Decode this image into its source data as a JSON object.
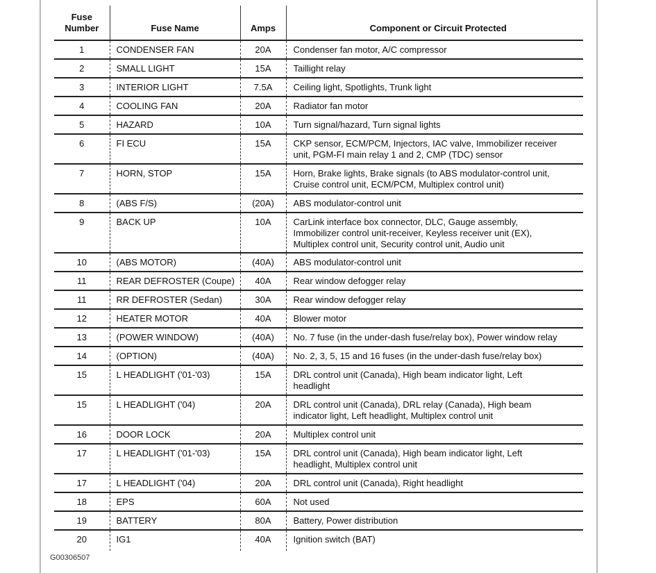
{
  "headers": [
    "Fuse Number",
    "Fuse Name",
    "Amps",
    "Component or Circuit Protected"
  ],
  "header_lines": {
    "number": [
      "Fuse",
      "Number"
    ]
  },
  "rows": [
    {
      "number": "1",
      "name": "CONDENSER FAN",
      "amps": "20A",
      "lines": [
        "Condenser fan motor, A/C compressor"
      ]
    },
    {
      "number": "2",
      "name": "SMALL LIGHT",
      "amps": "15A",
      "lines": [
        "Taillight relay"
      ]
    },
    {
      "number": "3",
      "name": "INTERIOR LIGHT",
      "amps": "7.5A",
      "lines": [
        "Ceiling light, Spotlights, Trunk light"
      ]
    },
    {
      "number": "4",
      "name": "COOLING FAN",
      "amps": "20A",
      "lines": [
        "Radiator fan motor"
      ]
    },
    {
      "number": "5",
      "name": "HAZARD",
      "amps": "10A",
      "lines": [
        "Turn signal/hazard, Turn signal lights"
      ]
    },
    {
      "number": "6",
      "name": "FI ECU",
      "amps": "15A",
      "lines": [
        "CKP sensor, ECM/PCM, Injectors, IAC valve, Immobilizer receiver",
        "unit, PGM-FI main relay 1 and 2, CMP (TDC) sensor"
      ]
    },
    {
      "number": "7",
      "name": "HORN, STOP",
      "amps": "15A",
      "lines": [
        "Horn, Brake lights, Brake signals (to ABS modulator-control unit,",
        "Cruise control unit, ECM/PCM, Multiplex control unit)"
      ]
    },
    {
      "number": "8",
      "name": "(ABS F/S)",
      "amps": "(20A)",
      "lines": [
        "ABS modulator-control unit"
      ]
    },
    {
      "number": "9",
      "name": "BACK UP",
      "amps": "10A",
      "lines": [
        "CarLink interface box connector, DLC, Gauge assembly,",
        "Immobilizer control unit-receiver, Keyless receiver unit (EX),",
        "Multiplex control unit, Security control unit, Audio unit"
      ]
    },
    {
      "number": "10",
      "name": "(ABS MOTOR)",
      "amps": "(40A)",
      "lines": [
        "ABS modulator-control unit"
      ]
    },
    {
      "number": "11",
      "name": "REAR DEFROSTER (Coupe)",
      "amps": "40A",
      "lines": [
        "Rear window defogger relay"
      ]
    },
    {
      "number": "11",
      "name": "RR DEFROSTER (Sedan)",
      "amps": "30A",
      "lines": [
        "Rear window defogger relay"
      ]
    },
    {
      "number": "12",
      "name": "HEATER MOTOR",
      "amps": "40A",
      "lines": [
        "Blower motor"
      ]
    },
    {
      "number": "13",
      "name": "(POWER WINDOW)",
      "amps": "(40A)",
      "lines": [
        "No. 7 fuse (in the under-dash fuse/relay box), Power window relay"
      ]
    },
    {
      "number": "14",
      "name": "(OPTION)",
      "amps": "(40A)",
      "lines": [
        "No. 2, 3, 5, 15 and 16 fuses (in the under-dash fuse/relay box)"
      ]
    },
    {
      "number": "15",
      "name": "L HEADLIGHT ('01-'03)",
      "amps": "15A",
      "lines": [
        "DRL control unit (Canada), High beam indicator light, Left",
        "headlight"
      ]
    },
    {
      "number": "15",
      "name": "L HEADLIGHT ('04)",
      "amps": "20A",
      "lines": [
        "DRL control unit (Canada), DRL relay (Canada), High beam",
        "indicator light, Left headlight, Multiplex control unit"
      ]
    },
    {
      "number": "16",
      "name": "DOOR LOCK",
      "amps": "20A",
      "lines": [
        "Multiplex control unit"
      ]
    },
    {
      "number": "17",
      "name": "L HEADLIGHT ('01-'03)",
      "amps": "15A",
      "lines": [
        "DRL control unit (Canada), High beam indicator light, Left",
        "headlight, Multiplex control unit"
      ]
    },
    {
      "number": "17",
      "name": "L HEADLIGHT ('04)",
      "amps": "20A",
      "lines": [
        "DRL control unit (Canada), Right headlight"
      ]
    },
    {
      "number": "18",
      "name": "EPS",
      "amps": "60A",
      "lines": [
        "Not used"
      ]
    },
    {
      "number": "19",
      "name": "BATTERY",
      "amps": "80A",
      "lines": [
        "Battery, Power distribution"
      ]
    },
    {
      "number": "20",
      "name": "IG1",
      "amps": "40A",
      "lines": [
        "Ignition switch (BAT)"
      ]
    }
  ],
  "caption": "G00306507"
}
